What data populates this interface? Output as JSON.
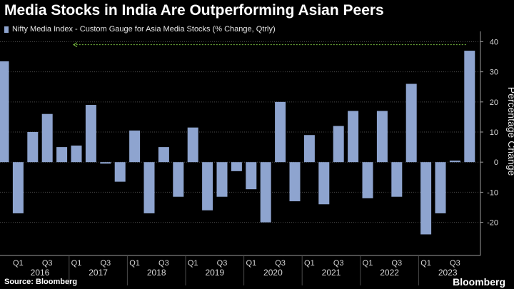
{
  "title": "Media Stocks in India Are Outperforming Asian Peers",
  "legend": "Nifty Media Index - Custom Gauge for Asia Media Stocks (% Change, Qtrly)",
  "source": "Source: Bloomberg",
  "brand": "Bloomberg",
  "colors": {
    "bar": "#8ea4cf",
    "arrow": "#7cc242",
    "grid": "#4a4a4a",
    "axis": "#9a9a9a"
  },
  "chart_data": {
    "type": "bar",
    "ylabel": "Percentage Change",
    "ylim": [
      -31,
      42
    ],
    "yticks": [
      40,
      30,
      20,
      10,
      0,
      -10,
      -20
    ],
    "grid": true,
    "y_axis_side": "right",
    "values": [
      33.5,
      -17,
      10,
      16,
      5,
      5.5,
      19,
      -0.5,
      -6.5,
      10.5,
      -17,
      5,
      -11.5,
      11.5,
      -16,
      -11.5,
      -3,
      -9,
      -20,
      20,
      -13,
      9,
      -14,
      12,
      17,
      -12,
      17,
      -11.5,
      26,
      -24,
      -17,
      0.5,
      37
    ],
    "quarter_labels": [
      {
        "index": 5,
        "label": "Q1"
      },
      {
        "index": 7,
        "label": "Q3"
      },
      {
        "index": 9,
        "label": "Q1"
      },
      {
        "index": 11,
        "label": "Q3"
      },
      {
        "index": 13,
        "label": "Q1"
      },
      {
        "index": 15,
        "label": "Q3"
      },
      {
        "index": 17,
        "label": "Q1"
      },
      {
        "index": 19,
        "label": "Q3"
      },
      {
        "index": 21,
        "label": "Q1"
      },
      {
        "index": 23,
        "label": "Q3"
      },
      {
        "index": 25,
        "label": "Q1"
      },
      {
        "index": 27,
        "label": "Q3"
      },
      {
        "index": 29,
        "label": "Q1"
      },
      {
        "index": 31,
        "label": "Q3"
      },
      {
        "index": 1,
        "label": "Q1"
      },
      {
        "index": 3,
        "label": "Q3"
      }
    ],
    "years": [
      {
        "label": "2016",
        "start": 0,
        "end": 4
      },
      {
        "label": "2017",
        "start": 4,
        "end": 8
      },
      {
        "label": "2018",
        "start": 8,
        "end": 12
      },
      {
        "label": "2019",
        "start": 12,
        "end": 16
      },
      {
        "label": "2020",
        "start": 16,
        "end": 20
      },
      {
        "label": "2021",
        "start": 20,
        "end": 24
      },
      {
        "label": "2022",
        "start": 24,
        "end": 28
      },
      {
        "label": "2023",
        "start": 28,
        "end": 32
      }
    ],
    "annotation": {
      "type": "arrow",
      "from_index": 32,
      "to_index": 5,
      "y": 39
    }
  }
}
